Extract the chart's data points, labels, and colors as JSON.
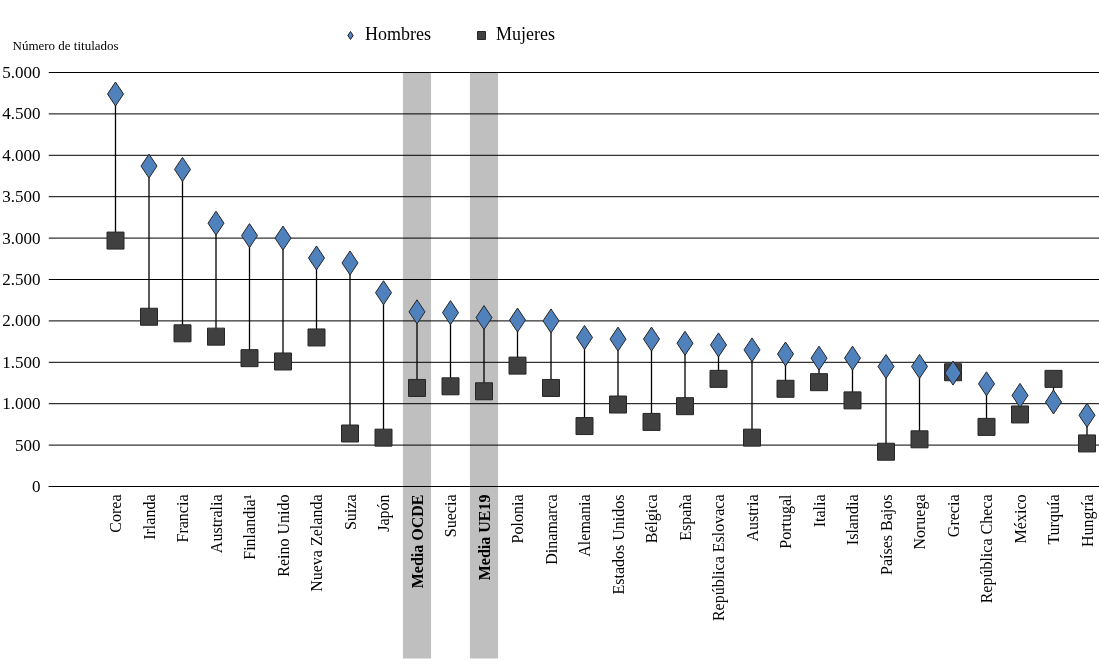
{
  "chart_data": {
    "type": "scatter",
    "ylabel": "Número de titulados",
    "categories": [
      "Corea",
      "Irlanda",
      "Francia",
      "Australia",
      "Finlandia¹",
      "Reino Unido",
      "Nueva Zelanda",
      "Suiza",
      "Japón",
      "Media OCDE",
      "Suecia",
      "Media UE19",
      "Polonia",
      "Dinamarca",
      "Alemania",
      "Estados Unidos",
      "Bélgica",
      "España",
      "República Eslovaca",
      "Austria",
      "Portugal",
      "Italia",
      "Islandia",
      "Países Bajos",
      "Noruega",
      "Grecia",
      "República Checa",
      "México",
      "Turquía",
      "Hungría"
    ],
    "series": [
      {
        "name": "Hombres",
        "color": "#4f81bd",
        "marker": "diamond",
        "values": [
          4740,
          3870,
          3830,
          3180,
          3030,
          3000,
          2760,
          2700,
          2340,
          2110,
          2100,
          2040,
          2010,
          2000,
          1800,
          1780,
          1780,
          1730,
          1710,
          1650,
          1600,
          1550,
          1550,
          1450,
          1450,
          1370,
          1240,
          1100,
          1020,
          860
        ]
      },
      {
        "name": "Mujeres",
        "color": "#404040",
        "marker": "square",
        "values": [
          2970,
          2050,
          1850,
          1810,
          1550,
          1510,
          1800,
          640,
          590,
          1190,
          1210,
          1150,
          1460,
          1190,
          730,
          990,
          780,
          970,
          1300,
          590,
          1180,
          1260,
          1040,
          420,
          570,
          1380,
          720,
          870,
          1300,
          520
        ]
      }
    ],
    "ylim": [
      0,
      5000
    ],
    "yticks": [
      0,
      {
        "value": 500,
        "label": "500"
      },
      {
        "value": 1000,
        "label": "1.000"
      },
      {
        "value": 1500,
        "label": "1.500"
      },
      {
        "value": 2000,
        "label": "2.000"
      },
      {
        "value": 2500,
        "label": "2.500"
      },
      {
        "value": 3000,
        "label": "3.000"
      },
      {
        "value": 3500,
        "label": "3.500"
      },
      {
        "value": 4000,
        "label": "4.000"
      },
      {
        "value": 4500,
        "label": "4.500"
      },
      {
        "value": 5000,
        "label": "5.000"
      }
    ],
    "bands": [
      {
        "axis": "x",
        "from": "Media OCDE",
        "to": "Media OCDE",
        "color": "#bfbfbf"
      },
      {
        "axis": "x",
        "from": "Media UE19",
        "to": "Media UE19",
        "color": "#bfbfbf"
      }
    ],
    "grid": "y",
    "legend": "top"
  }
}
